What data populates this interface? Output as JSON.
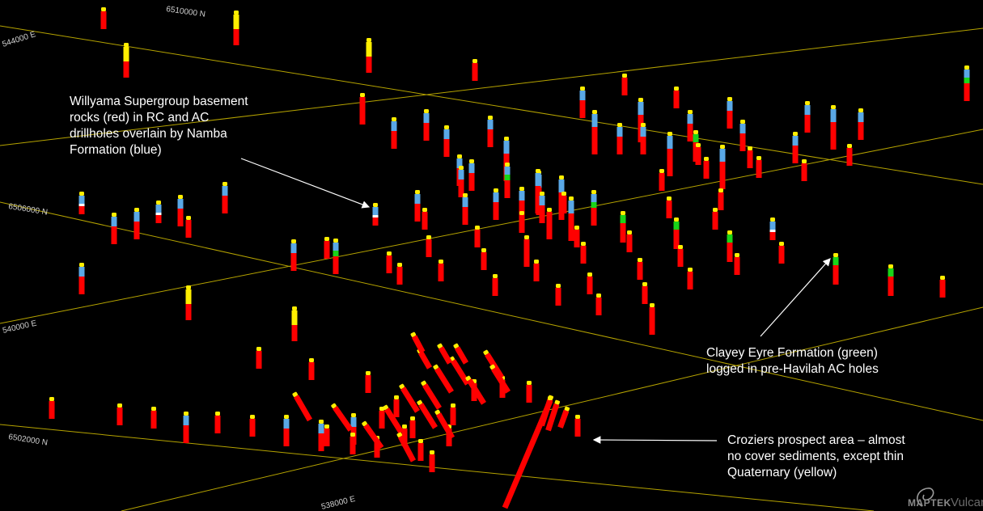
{
  "colors": {
    "background": "#000000",
    "grid": "#b5a300",
    "basement": "#ff0000",
    "namba": "#5aa8e6",
    "eyre": "#19d419",
    "quaternary": "#ffee00",
    "white_interval": "#ffffff",
    "arrow": "#ffffff"
  },
  "legend_units": [
    {
      "key": "basement",
      "name": "Willyama Supergroup basement",
      "color": "#ff0000"
    },
    {
      "key": "namba",
      "name": "Namba Formation",
      "color": "#5aa8e6"
    },
    {
      "key": "eyre",
      "name": "Eyre Formation",
      "color": "#19d419"
    },
    {
      "key": "quaternary",
      "name": "Quaternary",
      "color": "#ffee00"
    }
  ],
  "grid_labels": [
    "6510000 N",
    "6506000 N",
    "6502000 N",
    "544000 E",
    "540000 E",
    "538000 E"
  ],
  "annotations": {
    "willyama": {
      "lines": [
        "Willyama Supergroup basement",
        "rocks (red)  in RC and AC",
        "drillholes overlain by Namba",
        "Formation (blue)"
      ]
    },
    "clayey": {
      "lines": [
        "Clayey Eyre Formation (green)",
        "logged in pre-Havilah AC holes"
      ]
    },
    "croziers": {
      "lines": [
        "Croziers prospect area – almost",
        "no cover sediments, except thin",
        "Quaternary (yellow)"
      ]
    }
  },
  "watermark": {
    "brand": "MAPTEK",
    "product": "Vulcan"
  }
}
